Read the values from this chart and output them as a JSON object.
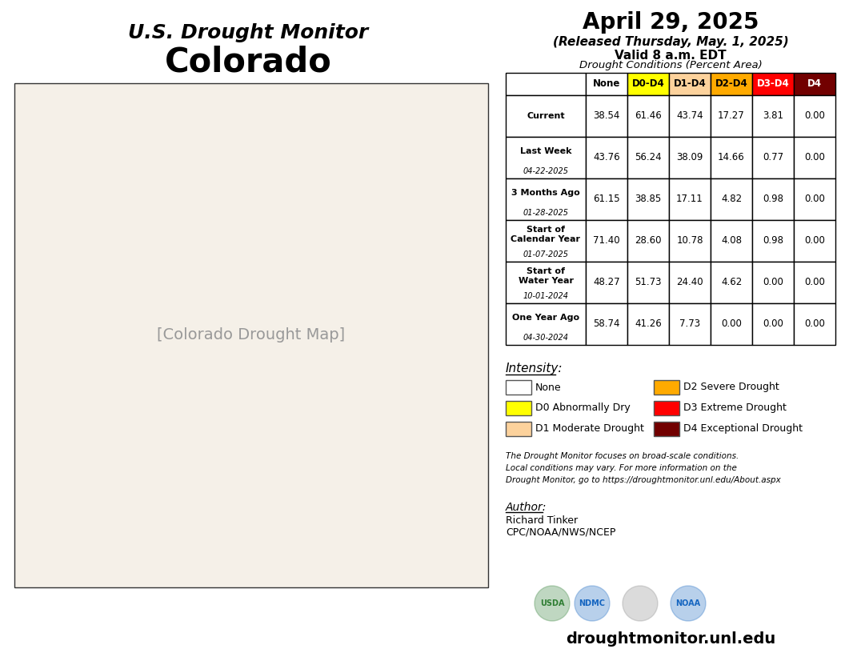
{
  "title_line1": "U.S. Drought Monitor",
  "title_line2": "Colorado",
  "date_line1": "April 29, 2025",
  "date_line2": "(Released Thursday, May. 1, 2025)",
  "date_line3": "Valid 8 a.m. EDT",
  "table_title": "Drought Conditions (Percent Area)",
  "col_headers": [
    "None",
    "D0-D4",
    "D1-D4",
    "D2-D4",
    "D3-D4",
    "D4"
  ],
  "col_header_colors": [
    "#ffffff",
    "#ffff00",
    "#fcd29c",
    "#ffaa00",
    "#ff0000",
    "#720000"
  ],
  "col_header_text_colors": [
    "#000000",
    "#000000",
    "#000000",
    "#000000",
    "#ffffff",
    "#ffffff"
  ],
  "row_labels": [
    [
      "Current",
      ""
    ],
    [
      "Last Week",
      "04-22-2025"
    ],
    [
      "3 Months Ago",
      "01-28-2025"
    ],
    [
      "Start of\nCalendar Year",
      "01-07-2025"
    ],
    [
      "Start of\nWater Year",
      "10-01-2024"
    ],
    [
      "One Year Ago",
      "04-30-2024"
    ]
  ],
  "table_data": [
    [
      38.54,
      61.46,
      43.74,
      17.27,
      3.81,
      0.0
    ],
    [
      43.76,
      56.24,
      38.09,
      14.66,
      0.77,
      0.0
    ],
    [
      61.15,
      38.85,
      17.11,
      4.82,
      0.98,
      0.0
    ],
    [
      71.4,
      28.6,
      10.78,
      4.08,
      0.98,
      0.0
    ],
    [
      48.27,
      51.73,
      24.4,
      4.62,
      0.0,
      0.0
    ],
    [
      58.74,
      41.26,
      7.73,
      0.0,
      0.0,
      0.0
    ]
  ],
  "intensity_label": "Intensity:",
  "intensity_items": [
    {
      "label": "None",
      "color": "#ffffff",
      "border": true
    },
    {
      "label": "D0 Abnormally Dry",
      "color": "#ffff00",
      "border": false
    },
    {
      "label": "D1 Moderate Drought",
      "color": "#fcd29c",
      "border": false
    },
    {
      "label": "D2 Severe Drought",
      "color": "#ffaa00",
      "border": false
    },
    {
      "label": "D3 Extreme Drought",
      "color": "#ff0000",
      "border": false
    },
    {
      "label": "D4 Exceptional Drought",
      "color": "#720000",
      "border": false
    }
  ],
  "footnote": "The Drought Monitor focuses on broad-scale conditions.\nLocal conditions may vary. For more information on the\nDrought Monitor, go to https://droughtmonitor.unl.edu/About.aspx",
  "author_label": "Author:",
  "author_name": "Richard Tinker",
  "author_org": "CPC/NOAA/NWS/NCEP",
  "website": "droughtmonitor.unl.edu",
  "bg_color": "#ffffff",
  "text_color": "#000000"
}
